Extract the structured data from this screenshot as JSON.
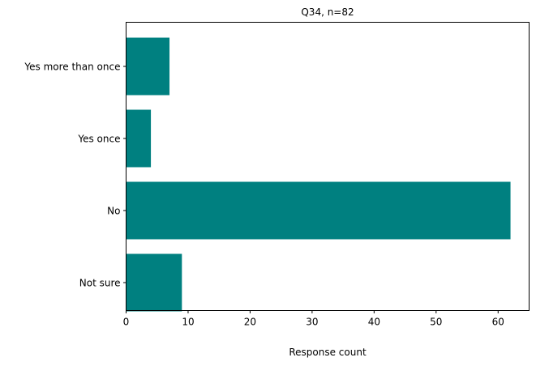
{
  "chart_data": {
    "type": "bar",
    "orientation": "horizontal",
    "title": "Q34, n=82",
    "categories": [
      "Yes more than once",
      "Yes once",
      "No",
      "Not sure"
    ],
    "values": [
      7,
      4,
      62,
      9
    ],
    "xlabel": "Response count",
    "ylabel": "",
    "xlim": [
      0,
      65
    ],
    "xticks": [
      0,
      10,
      20,
      30,
      40,
      50,
      60
    ],
    "bar_color": "#008080",
    "grid": false,
    "legend": "none"
  }
}
